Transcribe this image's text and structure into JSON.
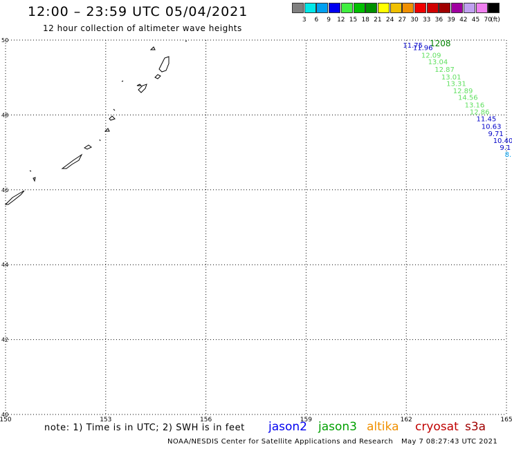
{
  "header": {
    "title": "12:00 – 23:59 UTC 05/04/2021",
    "subtitle": "12 hour collection of altimeter wave heights"
  },
  "colorbar": {
    "colors": [
      "#808080",
      "#00e8e8",
      "#00a0f0",
      "#0000f0",
      "#40f040",
      "#00c000",
      "#009000",
      "#ffff00",
      "#f0c000",
      "#f09000",
      "#f00000",
      "#d00000",
      "#a00000",
      "#a000a0",
      "#c0a0f0",
      "#f080f0",
      "#000000"
    ],
    "labels": [
      "3",
      "6",
      "9",
      "12",
      "15",
      "18",
      "21",
      "24",
      "27",
      "30",
      "33",
      "36",
      "39",
      "42",
      "45",
      "70"
    ],
    "unit": "(ft)"
  },
  "map": {
    "lon_range": [
      150,
      165
    ],
    "lat_range": [
      40,
      50
    ],
    "lon_ticks": [
      "150",
      "153",
      "156",
      "159",
      "162",
      "165"
    ],
    "lat_ticks": [
      "50",
      "48",
      "46",
      "44",
      "42",
      "40"
    ],
    "grid": "dotted",
    "track_header": {
      "jason2": "11.75",
      "jason3": "1208"
    },
    "track_points": [
      {
        "label": "11.96",
        "lat": 49.73,
        "lon": 162.2,
        "sat": "jason2"
      },
      {
        "label": "12.09",
        "lat": 49.53,
        "lon": 162.45,
        "sat": "jason3"
      },
      {
        "label": "13.04",
        "lat": 49.35,
        "lon": 162.65,
        "sat": "jason3"
      },
      {
        "label": "12.87",
        "lat": 49.15,
        "lon": 162.85,
        "sat": "jason3"
      },
      {
        "label": "13.01",
        "lat": 48.95,
        "lon": 163.05,
        "sat": "jason3"
      },
      {
        "label": "13.31",
        "lat": 48.77,
        "lon": 163.2,
        "sat": "jason3"
      },
      {
        "label": "12.89",
        "lat": 48.58,
        "lon": 163.4,
        "sat": "jason3"
      },
      {
        "label": "14.56",
        "lat": 48.4,
        "lon": 163.55,
        "sat": "jason3"
      },
      {
        "label": "13.16",
        "lat": 48.2,
        "lon": 163.75,
        "sat": "jason3"
      },
      {
        "label": "12.86",
        "lat": 48.02,
        "lon": 163.9,
        "sat": "jason3"
      },
      {
        "label": "11.45",
        "lat": 47.83,
        "lon": 164.1,
        "sat": "jason2"
      },
      {
        "label": "10.63",
        "lat": 47.63,
        "lon": 164.25,
        "sat": "jason2"
      },
      {
        "label": "9.71",
        "lat": 47.44,
        "lon": 164.45,
        "sat": "jason2"
      },
      {
        "label": "10.40",
        "lat": 47.25,
        "lon": 164.6,
        "sat": "jason2"
      },
      {
        "label": "9.1",
        "lat": 47.07,
        "lon": 164.8,
        "sat": "jason2"
      },
      {
        "label": "8.",
        "lat": 46.88,
        "lon": 164.95,
        "sat": "cyan"
      }
    ],
    "track_colors": {
      "jason2": "#0000c8",
      "jason3": "#60e060",
      "header_jason3": "#008000",
      "cyan": "#00a0f0"
    }
  },
  "legend": {
    "note": "note:  1) Time is in UTC;  2) SWH is in feet",
    "satellites": [
      {
        "name": "jason2",
        "color": "#0000f0"
      },
      {
        "name": "jason3",
        "color": "#00a000"
      },
      {
        "name": "altika",
        "color": "#f09000"
      },
      {
        "name": "cryosat",
        "color": "#c00000"
      },
      {
        "name": "s3a",
        "color": "#a00000"
      }
    ]
  },
  "footer": {
    "credit": "NOAA/NESDIS Center for Satellite Applications and Research",
    "timestamp": "May  7 08:27:43 UTC 2021"
  }
}
